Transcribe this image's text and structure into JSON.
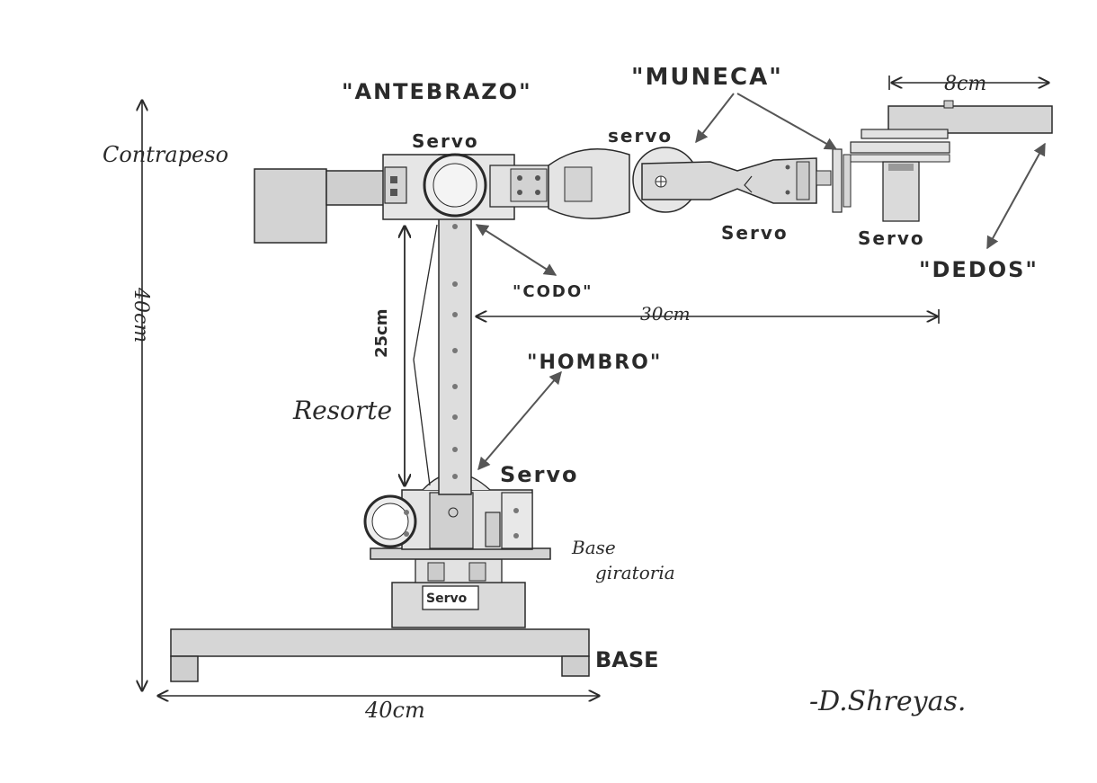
{
  "labels": {
    "antebrazo": "\"ANTEBRAZO\"",
    "muneca": "\"MUNECA\"",
    "dedos": "\"DEDOS\"",
    "codo": "\"CODO\"",
    "hombro": "\"HOMBRO\"",
    "contrapeso": "Contrapeso",
    "resorte": "Resorte",
    "base_giratoria_1": "Base",
    "base_giratoria_2": "giratoria",
    "base": "BASE",
    "servo_antebrazo": "Servo",
    "servo_muneca_top": "servo",
    "servo_muneca_bottom": "Servo",
    "servo_dedos": "Servo",
    "servo_hombro": "Servo",
    "servo_base": "Servo"
  },
  "dimensions": {
    "height": "40cm",
    "width": "40cm",
    "arm_length": "30cm",
    "upper_arm": "25cm",
    "finger": "8cm"
  },
  "signature": "-D.Shreyas.",
  "colors": {
    "ink": "#2a2a2a",
    "wood": "#d9d9d9",
    "wood_dark": "#bdbdbd"
  }
}
